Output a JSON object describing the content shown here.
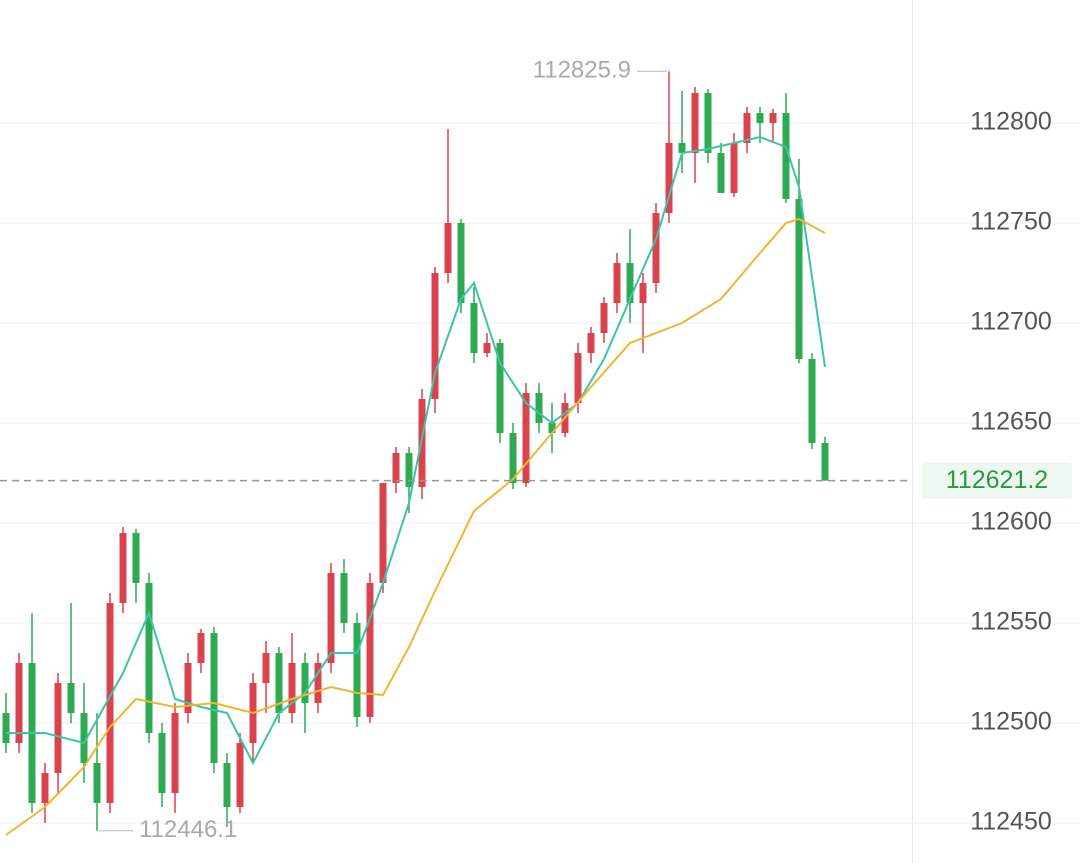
{
  "chart_data": {
    "type": "candlestick",
    "categories": [
      null,
      null,
      null,
      null,
      null,
      null,
      null,
      null,
      null,
      null,
      null,
      null,
      null,
      null,
      null,
      null,
      null,
      null,
      null,
      null,
      null,
      null,
      null,
      null,
      null,
      null,
      null,
      null,
      null,
      null,
      null,
      null,
      null,
      null,
      null,
      null,
      null,
      null,
      null,
      null,
      null,
      null,
      null,
      null,
      null,
      null,
      null,
      null,
      null,
      null,
      null,
      null,
      null,
      null,
      null,
      null,
      null,
      null,
      null,
      null,
      null,
      null,
      null,
      null
    ],
    "open": [
      112505,
      112490,
      112530,
      112460,
      112475,
      112520,
      112505,
      112480,
      112460,
      112560,
      112595,
      112570,
      112495,
      112465,
      112505,
      112530,
      112545,
      112480,
      112458,
      112490,
      112520,
      112535,
      112505,
      112530,
      112510,
      112530,
      112575,
      112550,
      112503,
      112570,
      112620,
      112635,
      112618,
      112662,
      112725,
      112750,
      112710,
      112685,
      112690,
      112645,
      112620,
      112665,
      112650,
      112645,
      112660,
      112685,
      112695,
      112710,
      112730,
      112710,
      112720,
      112755,
      112790,
      112785,
      112815,
      112785,
      112765,
      112790,
      112805,
      112800,
      112805,
      112762,
      112682,
      112640
    ],
    "high": [
      112515,
      112535,
      112555,
      112480,
      112525,
      112560,
      112520,
      112505,
      112565,
      112598,
      112597,
      112575,
      112500,
      112510,
      112535,
      112547,
      112548,
      112485,
      112495,
      112525,
      112541,
      112538,
      112545,
      112535,
      112535,
      112580,
      112582,
      112555,
      112575,
      112620,
      112638,
      112638,
      112667,
      112728,
      112797,
      112752,
      112718,
      112695,
      112692,
      112650,
      112670,
      112670,
      112660,
      112665,
      112690,
      112698,
      112713,
      112735,
      112747,
      112725,
      112760,
      112825.9,
      112816,
      112818,
      112817,
      112790,
      112795,
      112808,
      112808,
      112807,
      112815,
      112782,
      112685,
      112643
    ],
    "low": [
      112485,
      112485,
      112455,
      112450,
      112465,
      112500,
      112470,
      112446.1,
      112455,
      112555,
      112560,
      112490,
      112458,
      112455,
      112500,
      112525,
      112475,
      112448,
      112455,
      112480,
      112505,
      112500,
      112500,
      112495,
      112505,
      112525,
      112545,
      112498,
      112500,
      112565,
      112615,
      112605,
      112612,
      112655,
      112720,
      112705,
      112680,
      112683,
      112640,
      112617,
      112618,
      112645,
      112635,
      112643,
      112655,
      112680,
      112690,
      112705,
      112700,
      112685,
      112715,
      112750,
      112775,
      112770,
      112780,
      112765,
      112763,
      112785,
      112790,
      112790,
      112760,
      112680,
      112637,
      112621.2
    ],
    "close": [
      112490,
      112530,
      112460,
      112475,
      112520,
      112505,
      112480,
      112460,
      112560,
      112595,
      112570,
      112495,
      112465,
      112505,
      112530,
      112545,
      112480,
      112458,
      112490,
      112520,
      112535,
      112505,
      112530,
      112510,
      112530,
      112575,
      112550,
      112503,
      112570,
      112620,
      112635,
      112618,
      112662,
      112725,
      112750,
      112710,
      112685,
      112690,
      112645,
      112620,
      112665,
      112650,
      112645,
      112660,
      112685,
      112695,
      112710,
      112730,
      112710,
      112720,
      112755,
      112790,
      112785,
      112815,
      112785,
      112765,
      112790,
      112805,
      112800,
      112805,
      112762,
      112682,
      112640,
      112621.2
    ],
    "up_color": "#d8434e",
    "down_color": "#2eaa52",
    "lines": [
      {
        "color": "#3cc4a6",
        "x": [
          0,
          3,
          6,
          9,
          11,
          13,
          15,
          17,
          19,
          21,
          23,
          25,
          27,
          29,
          31,
          33,
          35,
          36,
          38,
          40,
          42,
          44,
          46,
          48,
          50,
          52,
          54,
          56,
          58,
          60,
          61,
          63
        ],
        "values": [
          112495,
          112495,
          112490,
          112525,
          112555,
          112512,
          112508,
          112505,
          112480,
          112505,
          112515,
          112535,
          112535,
          112570,
          112610,
          112675,
          112712,
          112720,
          112680,
          112660,
          112650,
          112660,
          112682,
          112712,
          112742,
          112785,
          112787,
          112790,
          112793,
          112788,
          112768,
          112678
        ]
      },
      {
        "color": "#efb630",
        "x": [
          0,
          3,
          6,
          8,
          10,
          13,
          16,
          19,
          22,
          25,
          27,
          29,
          31,
          33,
          36,
          39,
          42,
          45,
          48,
          52,
          55,
          58,
          60,
          61,
          63
        ],
        "values": [
          112444,
          112458,
          112478,
          112498,
          112512,
          112508,
          112510,
          112505,
          112512,
          112518,
          112515,
          112514,
          112538,
          112566,
          112606,
          112622,
          112645,
          112668,
          112690,
          112700,
          112712,
          112735,
          112750,
          112752,
          112745
        ]
      }
    ],
    "ylim": [
      112430,
      112861.5
    ],
    "yticks": [
      112450,
      112500,
      112550,
      112600,
      112650,
      112700,
      112750,
      112800
    ],
    "grid": true,
    "annotations": {
      "high": 112825.9,
      "low": 112446.1,
      "last": 112621.2
    }
  }
}
